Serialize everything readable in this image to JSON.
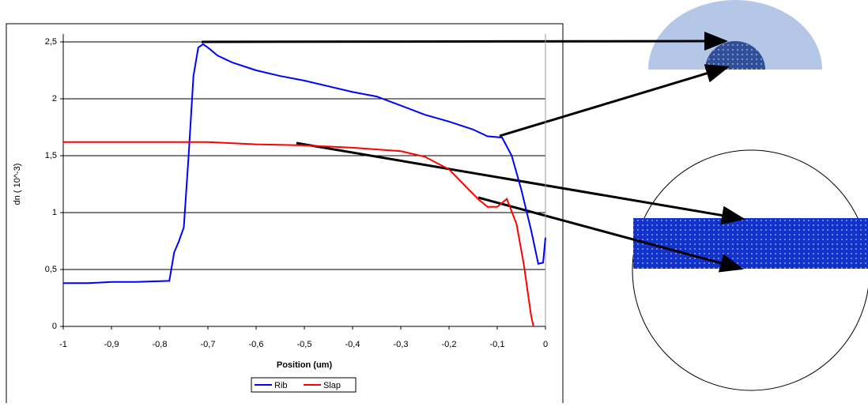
{
  "chart_data": {
    "type": "line",
    "x_label": "Position (um)",
    "y_label": "dn ( 10^-3)",
    "xlim": [
      -1,
      0
    ],
    "ylim": [
      0,
      2.5
    ],
    "xticks": [
      -1,
      {
        "value": -0.9,
        "label": "-0,9"
      },
      {
        "value": -0.8,
        "label": "-0,8"
      },
      {
        "value": -0.7,
        "label": "-0,7"
      },
      {
        "value": -0.6,
        "label": "-0,6"
      },
      {
        "value": -0.5,
        "label": "-0,5"
      },
      {
        "value": -0.4,
        "label": "-0,4"
      },
      {
        "value": -0.3,
        "label": "-0,3"
      },
      {
        "value": -0.2,
        "label": "-0,2"
      },
      {
        "value": -0.1,
        "label": "-0,1"
      },
      0
    ],
    "yticks": [
      0,
      {
        "value": 0.5,
        "label": "0,5"
      },
      1,
      {
        "value": 1.5,
        "label": "1,5"
      },
      2,
      {
        "value": 2.5,
        "label": "2,5"
      }
    ],
    "grid": true,
    "legend": "bottom",
    "series": [
      {
        "name": "Rib",
        "color": "#0000ff",
        "x": [
          -1,
          -0.95,
          -0.9,
          -0.85,
          -0.78,
          -0.77,
          -0.76,
          -0.75,
          -0.74,
          -0.73,
          -0.72,
          -0.71,
          -0.7,
          -0.68,
          -0.65,
          -0.6,
          -0.55,
          -0.5,
          -0.45,
          -0.4,
          -0.35,
          -0.3,
          -0.25,
          -0.2,
          -0.15,
          -0.12,
          -0.09,
          -0.07,
          -0.05,
          -0.03,
          -0.015,
          -0.005,
          0
        ],
        "values": [
          0.38,
          0.38,
          0.39,
          0.39,
          0.4,
          0.65,
          0.75,
          0.87,
          1.5,
          2.2,
          2.45,
          2.48,
          2.45,
          2.38,
          2.32,
          2.25,
          2.2,
          2.16,
          2.11,
          2.06,
          2.02,
          1.94,
          1.86,
          1.8,
          1.73,
          1.67,
          1.66,
          1.5,
          1.2,
          0.85,
          0.55,
          0.56,
          0.78
        ]
      },
      {
        "name": "Slap",
        "color": "#ff0000",
        "x": [
          -1,
          -0.8,
          -0.7,
          -0.6,
          -0.5,
          -0.4,
          -0.3,
          -0.25,
          -0.2,
          -0.17,
          -0.14,
          -0.12,
          -0.1,
          -0.08,
          -0.06,
          -0.045,
          -0.03,
          -0.025
        ],
        "values": [
          1.62,
          1.62,
          1.62,
          1.6,
          1.59,
          1.57,
          1.54,
          1.49,
          1.38,
          1.25,
          1.12,
          1.05,
          1.05,
          1.12,
          0.9,
          0.55,
          0.1,
          0
        ]
      }
    ]
  }
}
